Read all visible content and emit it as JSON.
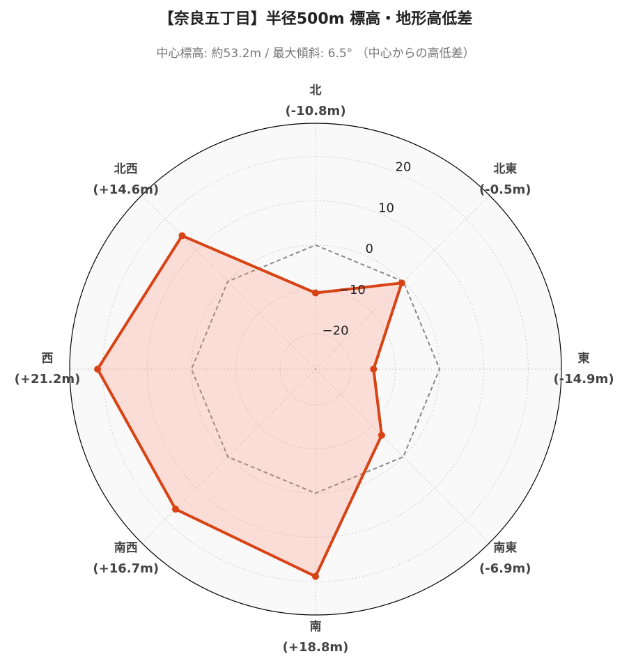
{
  "chart_data": {
    "type": "radar",
    "title": "【奈良五丁目】半径500m 標高・地形高低差",
    "subtitle": "中心標高: 約53.2m / 最大傾斜: 6.5° （中心からの高低差）",
    "categories": [
      "北",
      "北東",
      "東",
      "南東",
      "南",
      "南西",
      "西",
      "北西"
    ],
    "series": [
      {
        "color": "#d84315",
        "fill": "rgba(255,138,110,0.25)",
        "values": [
          -10.8,
          -0.5,
          -14.9,
          -6.9,
          18.8,
          16.7,
          21.2,
          14.6
        ],
        "value_labels": [
          "(-10.8m)",
          "(-0.5m)",
          "(-14.9m)",
          "(-6.9m)",
          "(+18.8m)",
          "(+16.7m)",
          "(+21.2m)",
          "(+14.6m)"
        ]
      }
    ],
    "reference": {
      "value": 0,
      "color": "#888888"
    },
    "ylim": [
      -28,
      27.5
    ],
    "yticks": [
      {
        "value": -20,
        "label": "−20"
      },
      {
        "value": -10,
        "label": "−10"
      },
      0,
      10,
      20
    ],
    "grid": true
  }
}
